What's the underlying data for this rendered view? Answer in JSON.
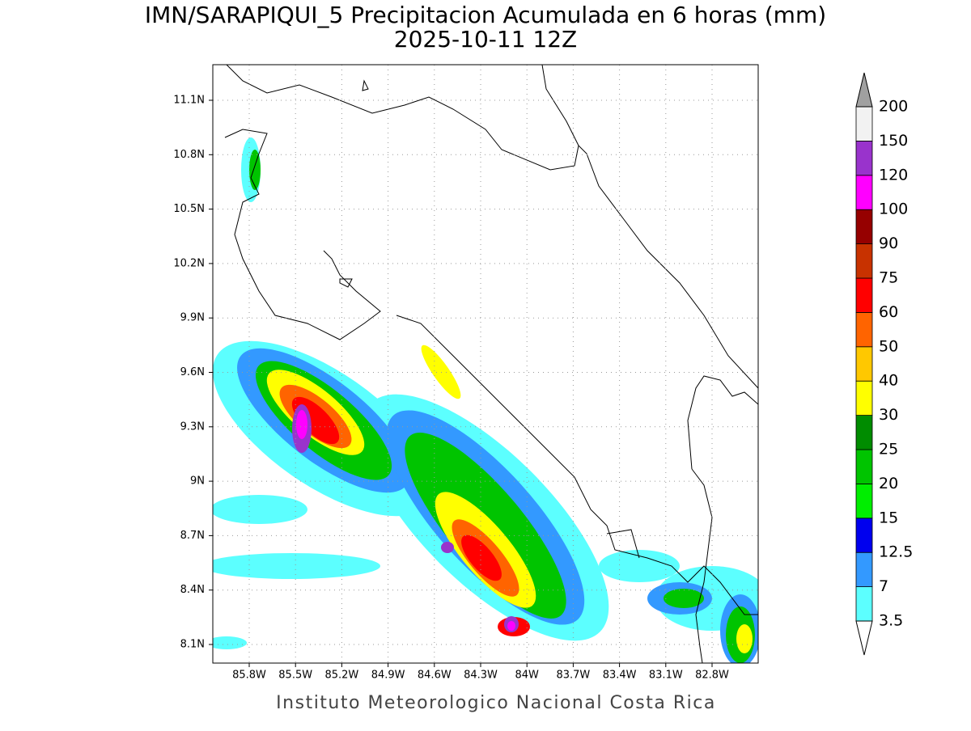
{
  "header": {
    "title": "IMN/SARAPIQUI_5 Precipitacion Acumulada en 6 horas (mm)",
    "subtitle": "2025-10-11 12Z"
  },
  "map": {
    "lat_labels": [
      "8.1N",
      "8.4N",
      "8.7N",
      "9N",
      "9.3N",
      "9.6N",
      "9.9N",
      "10.2N",
      "10.5N",
      "10.8N",
      "11.1N"
    ],
    "lon_labels": [
      "85.8W",
      "85.5W",
      "85.2W",
      "84.9W",
      "84.6W",
      "84.3W",
      "84W",
      "83.7W",
      "83.4W",
      "83.1W",
      "82.8W"
    ],
    "grid": true
  },
  "colorbar": {
    "labels": [
      "3.5",
      "7",
      "12.5",
      "15",
      "20",
      "25",
      "30",
      "40",
      "50",
      "60",
      "75",
      "90",
      "100",
      "120",
      "150",
      "200"
    ],
    "colors": [
      "#5cffff",
      "#3399ff",
      "#0000ee",
      "#00ee00",
      "#00c400",
      "#008c00",
      "#ffff00",
      "#ffc800",
      "#ff6400",
      "#ff0000",
      "#c83200",
      "#960000",
      "#ff00ff",
      "#9933cc",
      "#f2f2f2"
    ],
    "below_color": "#ffffff",
    "above_color": "#a0a0a0"
  },
  "footer": {
    "credit": "Instituto Meteorologico Nacional Costa Rica"
  }
}
